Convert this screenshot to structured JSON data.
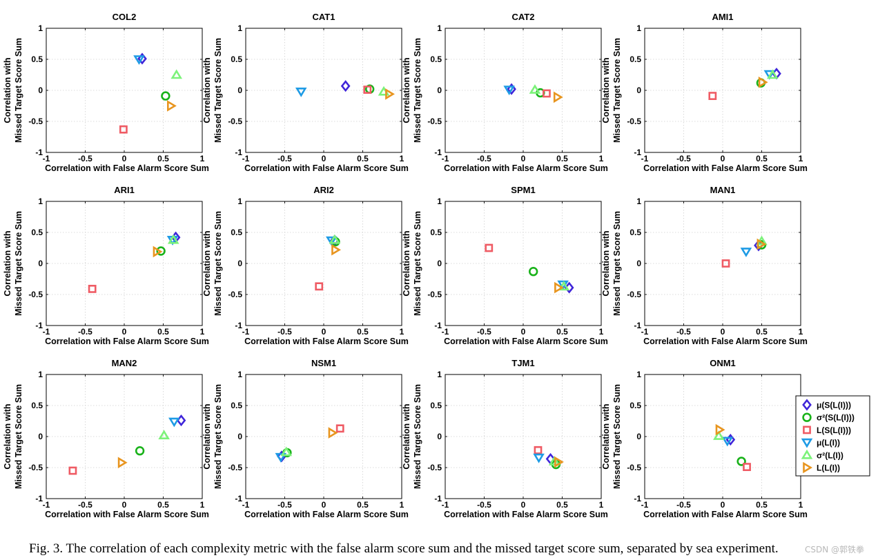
{
  "caption": "Fig. 3.  The correlation of each complexity metric with the false alarm score sum and the missed target score sum, separated by sea experiment.",
  "watermark": "CSDN @郭铁拳",
  "colors": {
    "mu_S": "#3f25d9",
    "sigma2_S": "#19b21a",
    "L_S": "#ef5b64",
    "mu_L": "#1e9be5",
    "sigma2_L": "#7cf27a",
    "L_L": "#e8951f"
  },
  "chart_data": {
    "type": "scatter",
    "xlabel": "Correlation with False Alarm Score Sum",
    "ylabel_lines": [
      "Correlation with",
      "Missed Target Score Sum"
    ],
    "xlim": [
      -1,
      1
    ],
    "ylim": [
      -1,
      1
    ],
    "xticks": [
      -1,
      -0.5,
      0,
      0.5,
      1
    ],
    "yticks": [
      -1,
      -0.5,
      0,
      0.5,
      1
    ],
    "grid": true,
    "legend_position": "right of the last row",
    "legend": [
      {
        "key": "mu_S",
        "label": "μ(S(L(I)))",
        "marker": "diamond"
      },
      {
        "key": "sigma2_S",
        "label": "σ²(S(L(I)))",
        "marker": "circle"
      },
      {
        "key": "L_S",
        "label": "L(S(L(I)))",
        "marker": "square"
      },
      {
        "key": "mu_L",
        "label": "μ(L(I))",
        "marker": "triangle-down"
      },
      {
        "key": "sigma2_L",
        "label": "σ²(L(I))",
        "marker": "triangle-up"
      },
      {
        "key": "L_L",
        "label": "L(L(I))",
        "marker": "triangle-right"
      }
    ],
    "panels": [
      {
        "title": "COL2",
        "points": {
          "mu_S": [
            0.23,
            0.51
          ],
          "sigma2_S": [
            0.53,
            -0.09
          ],
          "L_S": [
            -0.01,
            -0.63
          ],
          "mu_L": [
            0.19,
            0.5
          ],
          "sigma2_L": [
            0.67,
            0.25
          ],
          "L_L": [
            0.6,
            -0.25
          ]
        }
      },
      {
        "title": "CAT1",
        "points": {
          "mu_S": [
            0.28,
            0.07
          ],
          "sigma2_S": [
            0.59,
            0.02
          ],
          "L_S": [
            0.56,
            0.01
          ],
          "mu_L": [
            -0.29,
            -0.02
          ],
          "sigma2_L": [
            0.77,
            -0.02
          ],
          "L_L": [
            0.84,
            -0.06
          ]
        }
      },
      {
        "title": "CAT2",
        "points": {
          "mu_S": [
            -0.15,
            0.02
          ],
          "sigma2_S": [
            0.22,
            -0.04
          ],
          "L_S": [
            0.3,
            -0.05
          ],
          "mu_L": [
            -0.18,
            0.01
          ],
          "sigma2_L": [
            0.15,
            0.01
          ],
          "L_L": [
            0.44,
            -0.11
          ]
        }
      },
      {
        "title": "AMI1",
        "points": {
          "mu_S": [
            0.69,
            0.27
          ],
          "sigma2_S": [
            0.49,
            0.12
          ],
          "L_S": [
            -0.13,
            -0.09
          ],
          "mu_L": [
            0.6,
            0.26
          ],
          "sigma2_L": [
            0.64,
            0.25
          ],
          "L_L": [
            0.51,
            0.13
          ]
        }
      },
      {
        "title": "ARI1",
        "points": {
          "mu_S": [
            0.66,
            0.42
          ],
          "sigma2_S": [
            0.47,
            0.2
          ],
          "L_S": [
            -0.41,
            -0.41
          ],
          "mu_L": [
            0.62,
            0.38
          ],
          "sigma2_L": [
            0.63,
            0.38
          ],
          "L_L": [
            0.42,
            0.19
          ]
        }
      },
      {
        "title": "ARI2",
        "points": {
          "mu_S": [
            0.14,
            0.37
          ],
          "sigma2_S": [
            0.15,
            0.35
          ],
          "L_S": [
            -0.06,
            -0.37
          ],
          "mu_L": [
            0.1,
            0.37
          ],
          "sigma2_L": [
            0.14,
            0.38
          ],
          "L_L": [
            0.15,
            0.22
          ]
        }
      },
      {
        "title": "SPM1",
        "points": {
          "mu_S": [
            0.59,
            -0.39
          ],
          "sigma2_S": [
            0.13,
            -0.13
          ],
          "L_S": [
            -0.44,
            0.25
          ],
          "mu_L": [
            0.51,
            -0.34
          ],
          "sigma2_L": [
            0.52,
            -0.37
          ],
          "L_L": [
            0.45,
            -0.39
          ]
        }
      },
      {
        "title": "MAN1",
        "points": {
          "mu_S": [
            0.46,
            0.29
          ],
          "sigma2_S": [
            0.5,
            0.3
          ],
          "L_S": [
            0.04,
            0.0
          ],
          "mu_L": [
            0.3,
            0.19
          ],
          "sigma2_L": [
            0.5,
            0.36
          ],
          "L_L": [
            0.49,
            0.31
          ]
        }
      },
      {
        "title": "MAN2",
        "points": {
          "mu_S": [
            0.73,
            0.26
          ],
          "sigma2_S": [
            0.2,
            -0.23
          ],
          "L_S": [
            -0.66,
            -0.55
          ],
          "mu_L": [
            0.64,
            0.24
          ],
          "sigma2_L": [
            0.51,
            0.02
          ],
          "L_L": [
            -0.03,
            -0.42
          ]
        }
      },
      {
        "title": "NSM1",
        "points": {
          "mu_S": [
            -0.54,
            -0.32
          ],
          "sigma2_S": [
            -0.47,
            -0.26
          ],
          "L_S": [
            0.21,
            0.13
          ],
          "mu_L": [
            -0.55,
            -0.33
          ],
          "sigma2_L": [
            -0.48,
            -0.25
          ],
          "L_L": [
            0.11,
            0.06
          ]
        }
      },
      {
        "title": "TJM1",
        "points": {
          "mu_S": [
            0.35,
            -0.36
          ],
          "sigma2_S": [
            0.42,
            -0.45
          ],
          "L_S": [
            0.19,
            -0.22
          ],
          "mu_L": [
            0.2,
            -0.34
          ],
          "sigma2_L": [
            0.4,
            -0.4
          ],
          "L_L": [
            0.45,
            -0.41
          ]
        }
      },
      {
        "title": "ONM1",
        "points": {
          "mu_S": [
            0.1,
            -0.05
          ],
          "sigma2_S": [
            0.24,
            -0.4
          ],
          "L_S": [
            0.31,
            -0.49
          ],
          "mu_L": [
            0.06,
            -0.07
          ],
          "sigma2_L": [
            -0.05,
            0.01
          ],
          "L_L": [
            -0.04,
            0.11
          ]
        }
      }
    ]
  }
}
